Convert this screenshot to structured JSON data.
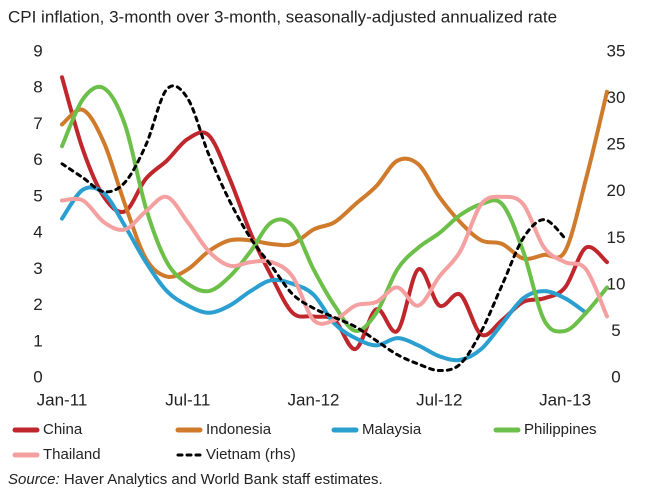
{
  "chart_data": {
    "type": "line",
    "title": "CPI inflation, 3-month over 3-month, seasonally-adjusted annualized rate",
    "categories": [
      "Jan-11",
      null,
      null,
      null,
      null,
      null,
      "Jul-11",
      null,
      null,
      null,
      null,
      null,
      "Jan-12",
      null,
      null,
      null,
      null,
      null,
      "Jul-12",
      null,
      null,
      null,
      null,
      null,
      "Jan-13",
      null,
      null
    ],
    "ylim": [
      0,
      9
    ],
    "yticks": [
      0,
      1,
      2,
      3,
      4,
      5,
      6,
      7,
      8,
      9
    ],
    "y2lim": [
      0,
      35
    ],
    "y2ticks": [
      0,
      5,
      10,
      15,
      20,
      25,
      30,
      35
    ],
    "grid": false,
    "legend": "bottom",
    "series": [
      {
        "name": "China",
        "color": "#c0272d",
        "values": [
          8.3,
          6.3,
          5.0,
          4.6,
          5.5,
          6.0,
          6.6,
          6.7,
          5.5,
          4.0,
          2.8,
          1.8,
          1.7,
          1.6,
          0.8,
          1.9,
          1.3,
          3.0,
          2.0,
          2.3,
          1.2,
          1.6,
          2.1,
          2.2,
          2.5,
          3.6,
          3.2
        ]
      },
      {
        "name": "Indonesia",
        "color": "#d07a2c",
        "values": [
          7.0,
          7.4,
          6.5,
          4.8,
          3.3,
          2.8,
          3.0,
          3.5,
          3.8,
          3.8,
          3.7,
          3.7,
          4.1,
          4.3,
          4.8,
          5.3,
          6.0,
          5.9,
          5.0,
          4.3,
          3.8,
          3.7,
          3.3,
          3.4,
          3.5,
          5.5,
          7.9
        ]
      },
      {
        "name": "Malaysia",
        "color": "#2a9fd0",
        "values": [
          4.4,
          5.2,
          5.1,
          4.2,
          3.2,
          2.4,
          2.0,
          1.8,
          2.0,
          2.4,
          2.7,
          2.6,
          2.3,
          1.5,
          1.1,
          0.9,
          1.1,
          0.9,
          0.6,
          0.5,
          0.8,
          1.5,
          2.2,
          2.4,
          2.2,
          1.8,
          null
        ]
      },
      {
        "name": "Philippines",
        "color": "#6cc04a",
        "values": [
          6.4,
          7.7,
          8.0,
          7.0,
          4.7,
          3.2,
          2.6,
          2.4,
          2.8,
          3.5,
          4.3,
          4.2,
          3.0,
          2.0,
          1.3,
          1.8,
          3.0,
          3.6,
          4.0,
          4.5,
          4.8,
          4.8,
          3.5,
          1.6,
          1.3,
          1.8,
          2.5
        ]
      },
      {
        "name": "Thailand",
        "color": "#f4a0a0",
        "values": [
          4.9,
          4.9,
          4.3,
          4.1,
          4.6,
          5.0,
          4.3,
          3.5,
          3.1,
          3.2,
          3.2,
          2.8,
          1.6,
          1.6,
          2.0,
          2.1,
          2.5,
          2.0,
          2.8,
          3.5,
          4.8,
          5.0,
          4.8,
          3.6,
          3.2,
          3.0,
          1.7
        ]
      },
      {
        "name": "Vietnam (rhs)",
        "color": "#000000",
        "dashed": true,
        "axis": "y2",
        "values": [
          23,
          21.5,
          20,
          21,
          25,
          31,
          30,
          24,
          19,
          15,
          12,
          9,
          7.5,
          6.5,
          5.5,
          4,
          2.5,
          1.5,
          0.8,
          1.5,
          5,
          10,
          15,
          17,
          15,
          null,
          null
        ]
      }
    ],
    "source": {
      "label": "Source:",
      "text": "Haver Analytics and World Bank staff estimates."
    }
  }
}
